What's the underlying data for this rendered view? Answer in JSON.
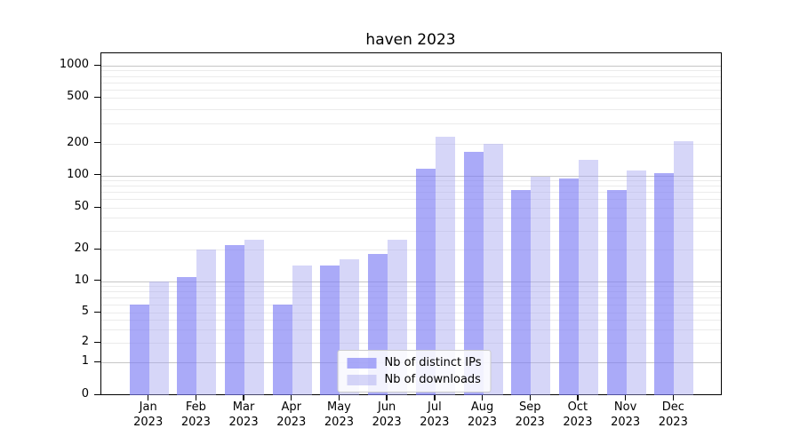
{
  "chart_data": {
    "type": "bar",
    "title": "haven 2023",
    "categories": [
      "Jan 2023",
      "Feb 2023",
      "Mar 2023",
      "Apr 2023",
      "May 2023",
      "Jun 2023",
      "Jul 2023",
      "Aug 2023",
      "Sep 2023",
      "Oct 2023",
      "Nov 2023",
      "Dec 2023"
    ],
    "series": [
      {
        "name": "Nb of distinct IPs",
        "color": "rgba(125,125,245,0.65)",
        "values": [
          6,
          11,
          22,
          6,
          14,
          18,
          115,
          165,
          73,
          93,
          73,
          105
        ]
      },
      {
        "name": "Nb of downloads",
        "color": "rgba(165,165,240,0.45)",
        "values": [
          10,
          20,
          25,
          14,
          16,
          25,
          230,
          200,
          97,
          140,
          112,
          210
        ]
      }
    ],
    "yticks": [
      0,
      1,
      2,
      5,
      10,
      20,
      50,
      100,
      200,
      500,
      1000
    ],
    "yscale": "symlog",
    "ylim": [
      0,
      1450
    ],
    "xlabel": "",
    "ylabel": "",
    "grid": true,
    "legend_position": "lower center"
  }
}
